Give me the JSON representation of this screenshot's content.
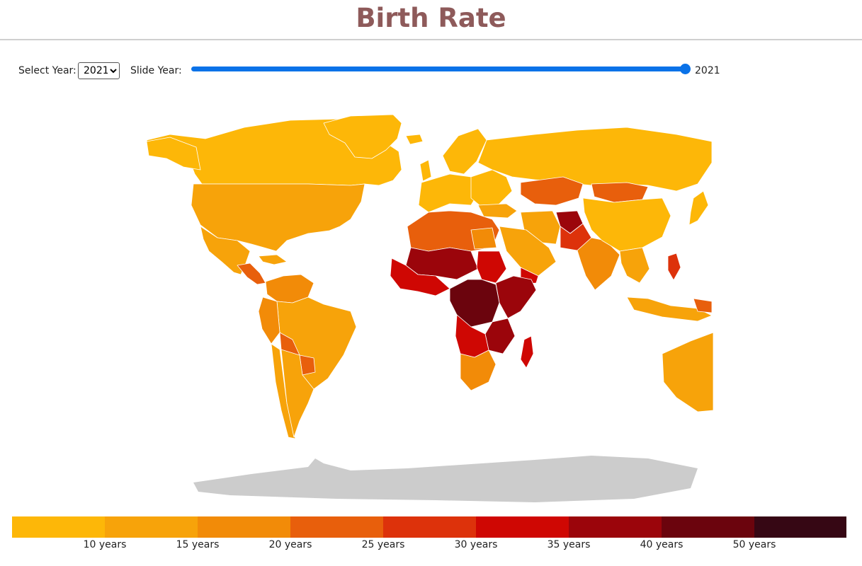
{
  "page": {
    "title": "Birth Rate"
  },
  "controls": {
    "select_label": "Select Year:",
    "selected_year": "2021",
    "slide_label": "Slide Year:",
    "slider_value": "2021",
    "slider_position": 1.0
  },
  "legend": {
    "colors": [
      "#fdb708",
      "#f7a30a",
      "#f28b08",
      "#e85f0c",
      "#dd320b",
      "#cf0703",
      "#9b050b",
      "#6b040d",
      "#360714"
    ],
    "labels": [
      "10 years",
      "15 years",
      "20 years",
      "25 years",
      "30 years",
      "35 years",
      "40 years",
      "50 years"
    ]
  },
  "map": {
    "no_data_color": "#cccccc",
    "ocean_color": "#ffffff",
    "border_color": "#ffffff"
  }
}
